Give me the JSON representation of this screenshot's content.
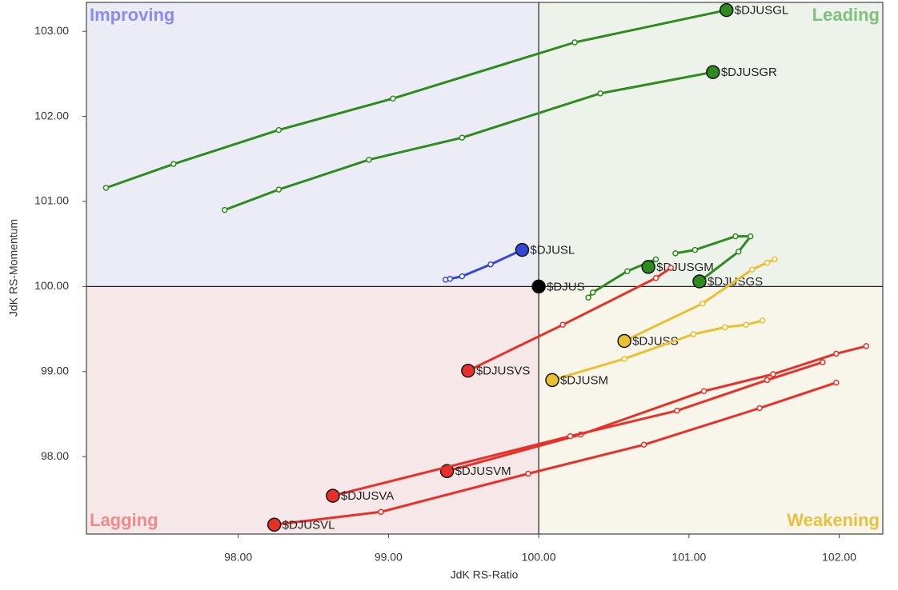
{
  "chart_data": {
    "type": "rrg",
    "x_label": "JdK RS-Ratio",
    "y_label": "JdK RS-Momentum",
    "xlim": [
      96.99,
      102.29
    ],
    "ylim": [
      97.09,
      103.34
    ],
    "xticks": [
      {
        "value": 98,
        "label": "98.00"
      },
      {
        "value": 99,
        "label": "99.00"
      },
      {
        "value": 100,
        "label": "100.00"
      },
      {
        "value": 101,
        "label": "101.00"
      },
      {
        "value": 102,
        "label": "102.00"
      }
    ],
    "yticks": [
      {
        "value": 98,
        "label": "98.00"
      },
      {
        "value": 99,
        "label": "99.00"
      },
      {
        "value": 100,
        "label": "100.00"
      },
      {
        "value": 101,
        "label": "101.00"
      },
      {
        "value": 102,
        "label": "102.00"
      },
      {
        "value": 103,
        "label": "103.00"
      }
    ],
    "reference_lines": {
      "x": 100,
      "y": 100
    },
    "quadrants": [
      {
        "label": "Improving",
        "position": "top-left",
        "background": "#ececf7",
        "color": "#8a8af0"
      },
      {
        "label": "Leading",
        "position": "top-right",
        "background": "#edf3ea",
        "color": "#7cc27c"
      },
      {
        "label": "Lagging",
        "position": "bottom-left",
        "background": "#f6e8e8",
        "color": "#f08a8a"
      },
      {
        "label": "Weakening",
        "position": "bottom-right",
        "background": "#f8f6ea",
        "color": "#e8c040"
      }
    ],
    "series": [
      {
        "name": "$DJUSGL",
        "color": "#2e8b1e",
        "x": [
          97.12,
          97.57,
          98.27,
          99.03,
          100.24,
          101.25
        ],
        "values": [
          101.16,
          101.44,
          101.84,
          102.21,
          102.87,
          103.25
        ]
      },
      {
        "name": "$DJUSGR",
        "color": "#2e8b1e",
        "x": [
          97.91,
          98.27,
          98.87,
          99.49,
          100.41,
          101.16
        ],
        "values": [
          100.9,
          101.14,
          101.49,
          101.75,
          102.27,
          102.52
        ]
      },
      {
        "name": "$DJUSL",
        "color": "#3348d8",
        "x": [
          99.38,
          99.41,
          99.49,
          99.68,
          99.89
        ],
        "values": [
          100.08,
          100.09,
          100.12,
          100.26,
          100.43
        ]
      },
      {
        "name": "$DJUS",
        "color": "#000000",
        "x": [
          100
        ],
        "values": [
          100
        ]
      },
      {
        "name": "$DJUSGM",
        "color": "#2e8b1e",
        "x": [
          100.33,
          100.36,
          100.59,
          100.78,
          100.73
        ],
        "values": [
          99.87,
          99.93,
          100.18,
          100.32,
          100.23
        ]
      },
      {
        "name": "$DJUSGS",
        "color": "#2e8b1e",
        "x": [
          100.91,
          101.04,
          101.31,
          101.41,
          101.33,
          101.07
        ],
        "values": [
          100.39,
          100.43,
          100.59,
          100.59,
          100.41,
          100.06
        ]
      },
      {
        "name": "$DJUSS",
        "color": "#e8c030",
        "x": [
          101.57,
          101.52,
          101.42,
          101.09,
          100.57
        ],
        "values": [
          100.32,
          100.28,
          100.2,
          99.8,
          99.36
        ]
      },
      {
        "name": "$DJUSM",
        "color": "#e8c030",
        "x": [
          101.49,
          101.38,
          101.24,
          101.03,
          100.57,
          100.09
        ],
        "values": [
          99.6,
          99.55,
          99.52,
          99.44,
          99.15,
          98.9
        ]
      },
      {
        "name": "$DJUSVS",
        "color": "#e8302a",
        "x": [
          100.88,
          100.78,
          100.16,
          99.53
        ],
        "values": [
          100.22,
          100.1,
          99.55,
          99.01
        ]
      },
      {
        "name": "$DJUSVM",
        "color": "#e8302a",
        "x": [
          102.18,
          101.98,
          101.56,
          101.1,
          100.28,
          99.39
        ],
        "values": [
          99.3,
          99.21,
          98.97,
          98.77,
          98.26,
          97.83
        ]
      },
      {
        "name": "$DJUSVA",
        "color": "#e8302a",
        "x": [
          101.89,
          101.52,
          100.92,
          100.21,
          98.63
        ],
        "values": [
          99.11,
          98.9,
          98.54,
          98.24,
          97.54
        ]
      },
      {
        "name": "$DJUSVL",
        "color": "#e8302a",
        "x": [
          101.98,
          101.47,
          100.7,
          99.93,
          98.95,
          98.24
        ],
        "values": [
          98.87,
          98.57,
          98.14,
          97.8,
          97.35,
          97.2
        ]
      }
    ]
  }
}
